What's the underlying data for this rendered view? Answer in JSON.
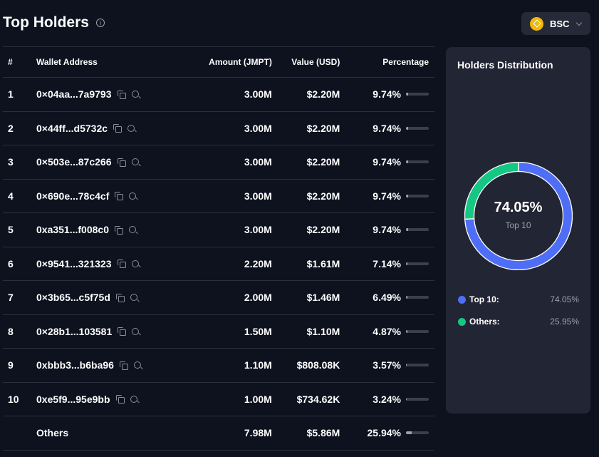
{
  "header": {
    "title": "Top Holders",
    "info_icon": "info-icon",
    "chain": "BSC"
  },
  "table": {
    "columns": [
      "#",
      "Wallet Address",
      "Amount (JMPT)",
      "Value (USD)",
      "Percentage"
    ],
    "rows": [
      {
        "rank": "1",
        "address": "0×04aa...7a9793",
        "amount": "3.00M",
        "value": "$2.20M",
        "percentage": "9.74%",
        "pct": 9.74
      },
      {
        "rank": "2",
        "address": "0×44ff...d5732c",
        "amount": "3.00M",
        "value": "$2.20M",
        "percentage": "9.74%",
        "pct": 9.74
      },
      {
        "rank": "3",
        "address": "0×503e...87c266",
        "amount": "3.00M",
        "value": "$2.20M",
        "percentage": "9.74%",
        "pct": 9.74
      },
      {
        "rank": "4",
        "address": "0×690e...78c4cf",
        "amount": "3.00M",
        "value": "$2.20M",
        "percentage": "9.74%",
        "pct": 9.74
      },
      {
        "rank": "5",
        "address": "0xa351...f008c0",
        "amount": "3.00M",
        "value": "$2.20M",
        "percentage": "9.74%",
        "pct": 9.74
      },
      {
        "rank": "6",
        "address": "0×9541...321323",
        "amount": "2.20M",
        "value": "$1.61M",
        "percentage": "7.14%",
        "pct": 7.14
      },
      {
        "rank": "7",
        "address": "0×3b65...c5f75d",
        "amount": "2.00M",
        "value": "$1.46M",
        "percentage": "6.49%",
        "pct": 6.49
      },
      {
        "rank": "8",
        "address": "0×28b1...103581",
        "amount": "1.50M",
        "value": "$1.10M",
        "percentage": "4.87%",
        "pct": 4.87
      },
      {
        "rank": "9",
        "address": "0xbbb3...b6ba96",
        "amount": "1.10M",
        "value": "$808.08K",
        "percentage": "3.57%",
        "pct": 3.57
      },
      {
        "rank": "10",
        "address": "0xe5f9...95e9bb",
        "amount": "1.00M",
        "value": "$734.62K",
        "percentage": "3.24%",
        "pct": 3.24
      }
    ],
    "others": {
      "rank": "",
      "address": "Others",
      "amount": "7.98M",
      "value": "$5.86M",
      "percentage": "25.94%",
      "pct": 25.94
    }
  },
  "distribution": {
    "title": "Holders Distribution",
    "center_value": "74.05%",
    "center_label": "Top 10",
    "segments": [
      {
        "label": "Top 10:",
        "value": "74.05%",
        "pct": 74.05,
        "color": "#4f6ef7"
      },
      {
        "label": "Others:",
        "value": "25.95%",
        "pct": 25.95,
        "color": "#16c784"
      }
    ]
  }
}
